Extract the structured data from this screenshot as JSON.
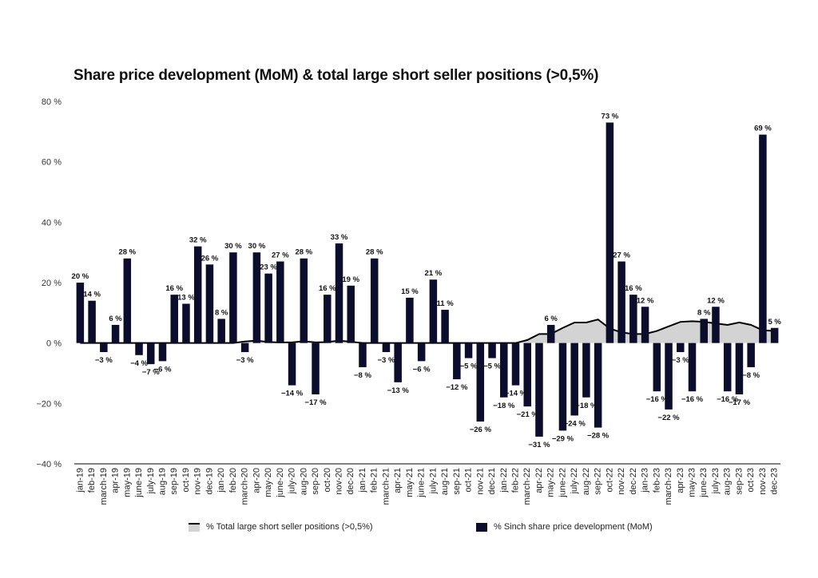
{
  "chart_data": {
    "type": "bar",
    "title": "Share price development (MoM) & total large short seller positions (>0,5%)",
    "xlabel": "",
    "ylabel": "",
    "ylim": [
      -40,
      80
    ],
    "yticks": [
      -40,
      -20,
      0,
      20,
      40,
      60,
      80
    ],
    "ytick_labels": [
      "−40 %",
      "−20 %",
      "0 %",
      "20 %",
      "40 %",
      "60 %",
      "80 %"
    ],
    "grid": false,
    "legend_position": "bottom",
    "categories": [
      "jan-19",
      "feb-19",
      "march-19",
      "apr-19",
      "may-19",
      "june-19",
      "july-19",
      "aug-19",
      "sep-19",
      "oct-19",
      "nov-19",
      "dec-19",
      "jan-20",
      "feb-20",
      "march-20",
      "apr-20",
      "may-20",
      "june-20",
      "july-20",
      "aug-20",
      "sep-20",
      "oct-20",
      "nov-20",
      "dec-20",
      "jan-21",
      "feb-21",
      "march-21",
      "apr-21",
      "may-21",
      "june-21",
      "july-21",
      "aug-21",
      "sep-21",
      "oct-21",
      "nov-21",
      "dec-21",
      "jan-22",
      "feb-22",
      "march-22",
      "apr-22",
      "may-22",
      "june-22",
      "july-22",
      "aug-22",
      "sep-22",
      "oct-22",
      "nov-22",
      "dec-22",
      "jan-23",
      "feb-23",
      "march-23",
      "apr-23",
      "may-23",
      "june-23",
      "july-23",
      "aug-23",
      "sep-23",
      "oct-23",
      "nov-23",
      "dec-23"
    ],
    "series": [
      {
        "name": "% Sinch share price development (MoM)",
        "kind": "bar",
        "color": "#0c0c2c",
        "values": [
          20,
          14,
          -3,
          6,
          28,
          -4,
          -7,
          -6,
          16,
          13,
          32,
          26,
          8,
          30,
          -3,
          30,
          23,
          27,
          -14,
          28,
          -17,
          16,
          33,
          19,
          -8,
          28,
          -3,
          -13,
          15,
          -6,
          21,
          11,
          -12,
          -5,
          -26,
          -5,
          -18,
          -14,
          -21,
          -31,
          6,
          -29,
          -24,
          -18,
          -28,
          73,
          27,
          16,
          12,
          -16,
          -22,
          -3,
          -16,
          8,
          12,
          -16,
          -17,
          -8,
          69,
          5
        ],
        "labels": [
          "20 %",
          "14 %",
          "−3 %",
          "6 %",
          "28 %",
          "−4 %",
          "−7 %",
          "−6 %",
          "16 %",
          "13 %",
          "32 %",
          "26 %",
          "8 %",
          "30 %",
          "−3 %",
          "30 %",
          "23 %",
          "27 %",
          "−14 %",
          "28 %",
          "−17 %",
          "16 %",
          "33 %",
          "19 %",
          "−8 %",
          "28 %",
          "−3 %",
          "−13 %",
          "15 %",
          "−6 %",
          "21 %",
          "11 %",
          "−12 %",
          "−5 %",
          "−26 %",
          "−5 %",
          "−18 %",
          "−14 %",
          "−21 %",
          "−31 %",
          "6 %",
          "−29 %",
          "−24 %",
          "−18 %",
          "−28 %",
          "73 %",
          "27 %",
          "16 %",
          "12 %",
          "−16 %",
          "−22 %",
          "−3 %",
          "−16 %",
          "8 %",
          "12 %",
          "−16 %",
          "−17 %",
          "−8 %",
          "69 %",
          "5 %"
        ]
      },
      {
        "name": "% Total large short seller positions (>0,5%)",
        "kind": "area",
        "color": "#d3d3d3",
        "line_color": "#000000",
        "values": [
          0,
          0,
          0,
          0,
          0,
          0,
          0,
          0,
          0,
          0,
          0,
          0,
          0,
          0,
          0.5,
          0.8,
          0.3,
          0.2,
          0.2,
          0.6,
          0.2,
          0.3,
          0.8,
          0.4,
          0,
          0,
          0,
          0,
          0,
          0,
          0,
          0,
          0,
          0,
          0,
          0,
          0,
          0,
          1,
          3,
          3,
          5,
          6.8,
          6.8,
          7.8,
          4.8,
          3.5,
          3.0,
          3.0,
          4.0,
          5.5,
          7.0,
          7.2,
          7.0,
          6.5,
          6.0,
          6.8,
          6.0,
          4.2,
          4.0
        ]
      }
    ]
  },
  "legend": {
    "area_label": "% Total large short seller positions (>0,5%)",
    "bar_label": "% Sinch share price development (MoM)"
  }
}
